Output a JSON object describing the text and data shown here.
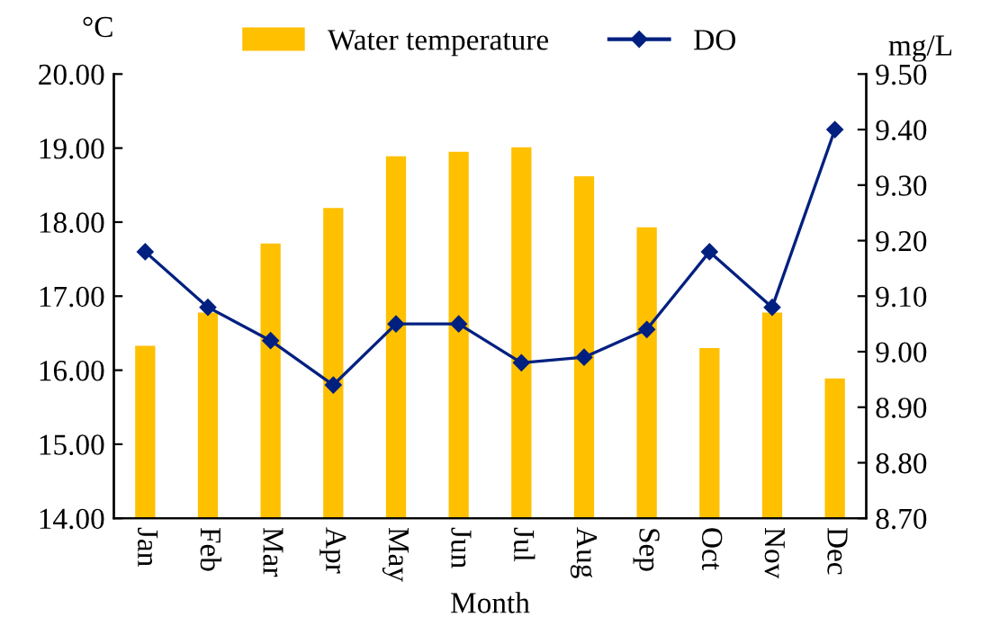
{
  "chart_data": {
    "type": "bar",
    "xlabel": "Month",
    "ylabel": "°C",
    "y2label": "mg/L",
    "categories": [
      "Jan",
      "Feb",
      "Mar",
      "Apr",
      "May",
      "Jun",
      "Jul",
      "Aug",
      "Sep",
      "Oct",
      "Nov",
      "Dec"
    ],
    "series": [
      {
        "name": "Water temperature",
        "color": "#ffc000",
        "values": [
          16.33,
          16.78,
          17.71,
          18.19,
          18.89,
          18.95,
          19.01,
          18.62,
          17.93,
          16.3,
          16.78,
          15.89
        ]
      },
      {
        "name": "DO",
        "type": "line",
        "axis": "y2",
        "color": "#002080",
        "marker": "diamond",
        "line_style": "solid",
        "values": [
          9.18,
          9.08,
          9.02,
          8.94,
          9.05,
          9.05,
          8.98,
          8.99,
          9.04,
          9.18,
          9.08,
          9.4
        ]
      }
    ],
    "ylim": [
      14,
      20
    ],
    "yticks": [
      {
        "value": 14,
        "label": "14.00"
      },
      {
        "value": 15,
        "label": "15.00"
      },
      {
        "value": 16,
        "label": "16.00"
      },
      {
        "value": 17,
        "label": "17.00"
      },
      {
        "value": 18,
        "label": "18.00"
      },
      {
        "value": 19,
        "label": "19.00"
      },
      {
        "value": 20,
        "label": "20.00"
      }
    ],
    "y2lim": [
      8.7,
      9.5
    ],
    "y2ticks": [
      {
        "value": 8.7,
        "label": "8.70"
      },
      {
        "value": 8.8,
        "label": "8.80"
      },
      {
        "value": 8.9,
        "label": "8.90"
      },
      {
        "value": 9.0,
        "label": "9.00"
      },
      {
        "value": 9.1,
        "label": "9.10"
      },
      {
        "value": 9.2,
        "label": "9.20"
      },
      {
        "value": 9.3,
        "label": "9.30"
      },
      {
        "value": 9.4,
        "label": "9.40"
      },
      {
        "value": 9.5,
        "label": "9.50"
      }
    ],
    "grid": false,
    "legend": "top"
  }
}
